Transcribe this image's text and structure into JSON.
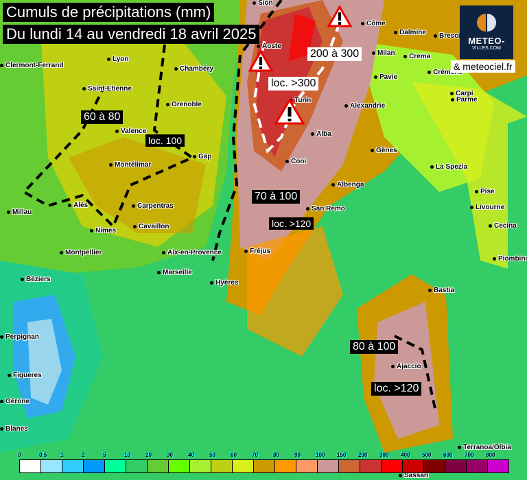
{
  "title": {
    "line1": "Cumuls de précipitations (mm)",
    "line2": "Du lundi 14 au vendredi 18 avril 2025"
  },
  "logo": {
    "text": "METEO-",
    "subtext": "VILLES.COM"
  },
  "credit": "& meteociel.fr",
  "zone_labels": {
    "a": "60 à 80",
    "b": "loc. 100",
    "c": "70 à 100",
    "d": "loc. >120",
    "e": "80 à 100",
    "f": "loc. >120",
    "g": "200 à 300",
    "h": "loc. >300"
  },
  "cities": [
    "Sion",
    "Aoste",
    "Côme",
    "Dalmine",
    "Brescia",
    "Milan",
    "Crema",
    "Pavie",
    "Crémone",
    "Turin",
    "Alexandrie",
    "Alba",
    "Gênes",
    "Coni",
    "La Spezia",
    "Carpi",
    "Parme",
    "Pise",
    "Livourne",
    "Cecina",
    "Piombino",
    "Bastia",
    "Ajaccio",
    "Sassari",
    "Terranoa/Olbia",
    "Albenga",
    "San Remo",
    "Fréjus",
    "Hyères",
    "Marseille",
    "Aix-en-Provence",
    "Cavaillon",
    "Carpentras",
    "Nimes",
    "Alès",
    "Montpellier",
    "Béziers",
    "Millau",
    "Perpignan",
    "Figueres",
    "Gérone",
    "Blanes",
    "Montélimar",
    "Valence",
    "Gap",
    "Grenoble",
    "Chambéry",
    "Lyon",
    "Saint-Etienne",
    "Clermont-Ferrand"
  ],
  "legend": {
    "ticks": [
      "0",
      "0.5",
      "1",
      "2",
      "5",
      "10",
      "20",
      "30",
      "40",
      "50",
      "60",
      "70",
      "80",
      "90",
      "100",
      "150",
      "200",
      "300",
      "400",
      "500",
      "600",
      "700",
      "800"
    ],
    "colors": [
      "#ffffff",
      "#99e6ff",
      "#33ccff",
      "#0099ff",
      "#00ff99",
      "#33cc66",
      "#66cc33",
      "#66ff00",
      "#a6f032",
      "#bfcf12",
      "#d9ee1a",
      "#cc9900",
      "#ff9900",
      "#ff9966",
      "#cc9999",
      "#cc6633",
      "#cc3333",
      "#ff0000",
      "#cc0000",
      "#800000",
      "#800040",
      "#990066",
      "#cc00cc"
    ]
  },
  "icons": {
    "warning": "warning-triangle-icon"
  }
}
